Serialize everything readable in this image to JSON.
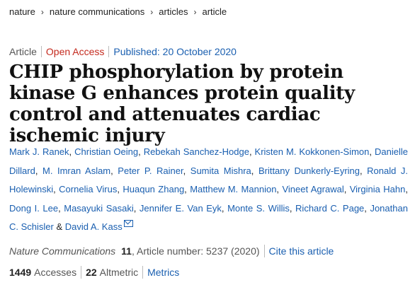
{
  "breadcrumb": [
    "nature",
    "nature communications",
    "articles",
    "article"
  ],
  "meta": {
    "type": "Article",
    "access": "Open Access",
    "published": "Published: 20 October 2020"
  },
  "title": "CHIP phosphorylation by protein kinase G enhances protein quality control and attenuates cardiac ischemic injury",
  "authors": [
    "Mark J. Ranek",
    "Christian Oeing",
    "Rebekah Sanchez-Hodge",
    "Kristen M. Kokkonen-Simon",
    "Danielle Dillard",
    "M. Imran Aslam",
    "Peter P. Rainer",
    "Sumita Mishra",
    "Brittany Dunkerly-Eyring",
    "Ronald J. Holewinski",
    "Cornelia Virus",
    "Huaqun Zhang",
    "Matthew M. Mannion",
    "Vineet Agrawal",
    "Virginia Hahn",
    "Dong I. Lee",
    "Masayuki Sasaki",
    "Jennifer E. Van Eyk",
    "Monte S. Willis",
    "Richard C. Page",
    "Jonathan C. Schisler",
    "David A. Kass"
  ],
  "authors_last_sep": "&",
  "citation": {
    "journal": "Nature Communications",
    "volume": "11",
    "article_number": ", Article number: 5237 (2020)",
    "cite_label": "Cite this article"
  },
  "metrics": {
    "accesses": "1449",
    "accesses_label": "Accesses",
    "altmetric": "22",
    "altmetric_label": "Altmetric",
    "metrics_label": "Metrics"
  },
  "icons": {
    "separator": "chevron-right-icon",
    "contact": "envelope-icon"
  }
}
